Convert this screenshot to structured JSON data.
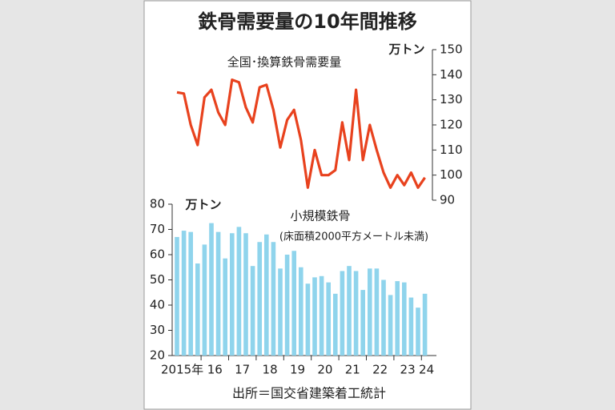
{
  "title": "鉄骨需要量の10年間推移",
  "source": "出所＝国交省建築着工統計",
  "chart_data": [
    {
      "type": "line",
      "annotation": "全国･換算鉄骨需要量",
      "unit": "万トン",
      "color": "#e8421e",
      "values": [
        133,
        132.5,
        120,
        112,
        131,
        134,
        125,
        120,
        138,
        137,
        127,
        121,
        135,
        136,
        126,
        111,
        122,
        126,
        114,
        95,
        110,
        100,
        100,
        102,
        121,
        106,
        134,
        106,
        120,
        110,
        101,
        95,
        100,
        96,
        101,
        95,
        99
      ],
      "ylim": [
        90,
        150
      ],
      "yticks": [
        90,
        100,
        110,
        120,
        130,
        140,
        150
      ]
    },
    {
      "type": "bar",
      "annotation": "小規模鉄骨",
      "subannotation": "(床面積2000平方メートル未満)",
      "unit": "万トン",
      "color": "#8fd4ec",
      "categories": [
        null,
        "2015年",
        null,
        null,
        null,
        "16",
        null,
        null,
        null,
        "17",
        null,
        null,
        null,
        "18",
        null,
        null,
        null,
        "19",
        null,
        null,
        null,
        "20",
        null,
        null,
        null,
        "21",
        null,
        null,
        null,
        "22",
        null,
        null,
        null,
        "23",
        null,
        null,
        "24"
      ],
      "values": [
        67,
        69.5,
        69,
        56.5,
        64,
        72.5,
        69,
        58.5,
        68.5,
        71,
        68.5,
        55.5,
        65,
        68,
        65,
        54.5,
        60,
        61.5,
        55,
        48.5,
        51,
        51.5,
        49,
        44.5,
        53.5,
        55.5,
        53.5,
        46,
        54.5,
        54.5,
        50,
        44,
        49.5,
        49,
        43,
        39,
        44.5
      ],
      "ylim": [
        20,
        80
      ],
      "yticks": [
        20,
        30,
        40,
        50,
        60,
        70,
        80
      ]
    }
  ]
}
